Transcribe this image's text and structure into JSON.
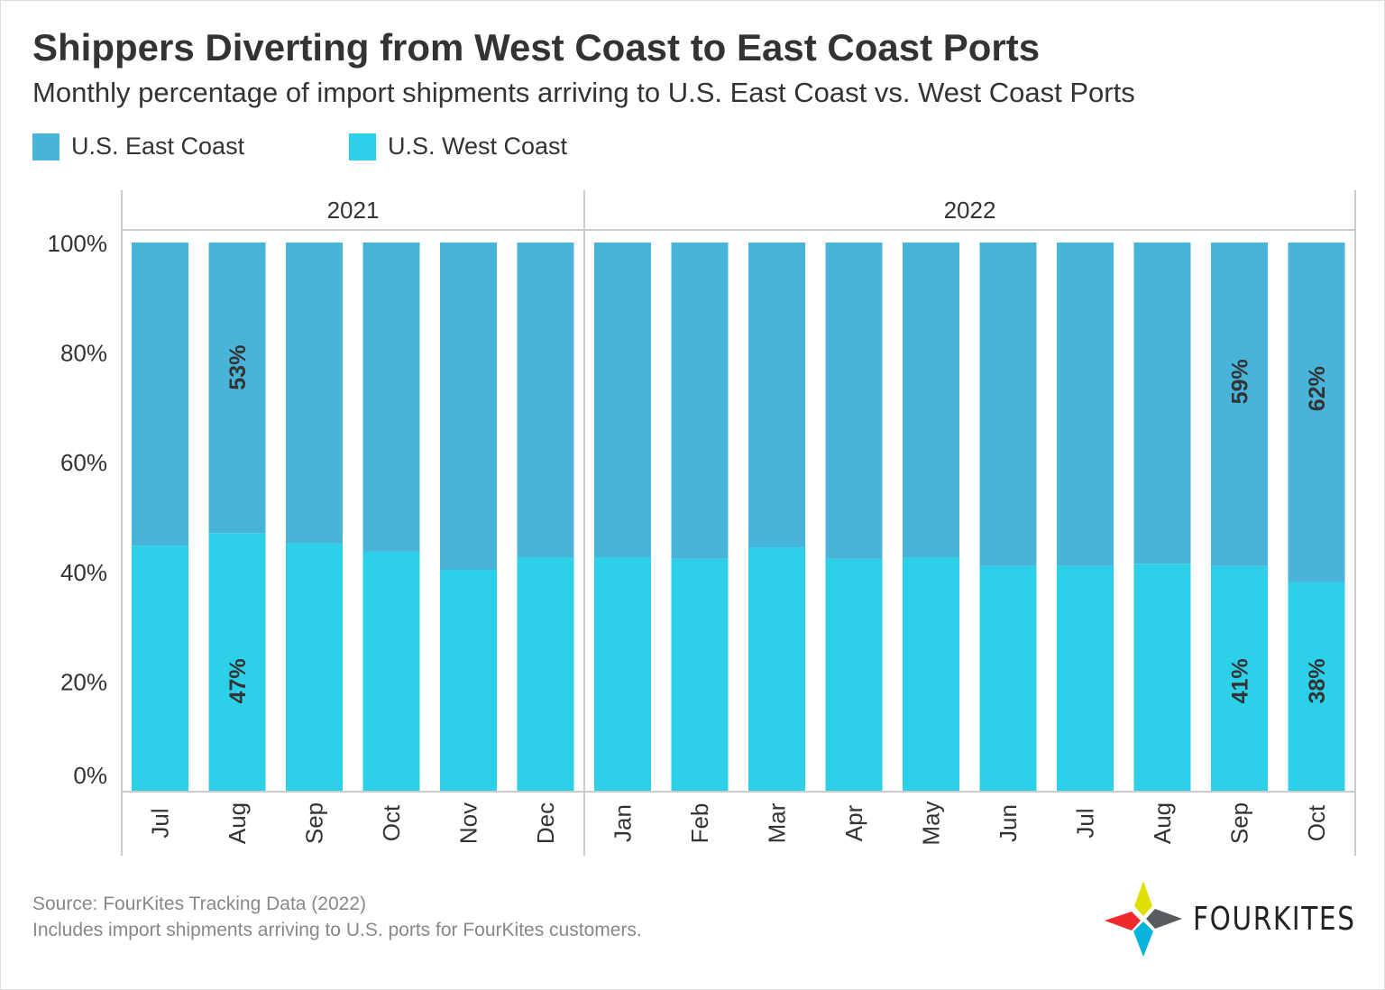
{
  "title": "Shippers Diverting from West Coast to East Coast Ports",
  "subtitle": "Monthly percentage of import shipments arriving to U.S. East Coast vs. West Coast Ports",
  "source_lines": [
    "Source: FourKites Tracking Data (2022)",
    "Includes import shipments arriving to U.S. ports for FourKites customers."
  ],
  "logo_text": "FOURKITES",
  "chart_data": {
    "type": "bar",
    "stacked": true,
    "groups": [
      {
        "label": "2021",
        "categories": [
          "Jul",
          "Aug",
          "Sep",
          "Oct",
          "Nov",
          "Dec"
        ]
      },
      {
        "label": "2022",
        "categories": [
          "Jan",
          "Feb",
          "Mar",
          "Apr",
          "May",
          "Jun",
          "Jul",
          "Aug",
          "Sep",
          "Oct"
        ]
      }
    ],
    "categories": [
      "Jul",
      "Aug",
      "Sep",
      "Oct",
      "Nov",
      "Dec",
      "Jan",
      "Feb",
      "Mar",
      "Apr",
      "May",
      "Jun",
      "Jul",
      "Aug",
      "Sep",
      "Oct"
    ],
    "series": [
      {
        "name": "U.S. West Coast",
        "color": "#2CD0E8",
        "values": [
          44.7,
          47,
          45.1,
          43.6,
          40.3,
          42.6,
          42.6,
          42.3,
          44.4,
          42.3,
          42.6,
          41,
          41,
          41.4,
          41,
          38
        ],
        "data_labels": [
          null,
          "47%",
          null,
          null,
          null,
          null,
          null,
          null,
          null,
          null,
          null,
          null,
          null,
          null,
          "41%",
          "38%"
        ]
      },
      {
        "name": "U.S. East Coast",
        "color": "#48B4DA",
        "values": [
          55.3,
          53,
          54.9,
          56.4,
          59.7,
          57.4,
          57.4,
          57.7,
          55.6,
          57.7,
          57.4,
          59,
          59,
          58.6,
          59,
          62
        ],
        "data_labels": [
          null,
          "53%",
          null,
          null,
          null,
          null,
          null,
          null,
          null,
          null,
          null,
          null,
          null,
          null,
          "59%",
          "62%"
        ]
      }
    ],
    "legend": [
      "U.S. East Coast",
      "U.S. West Coast"
    ],
    "legend_placement": "top-left",
    "y_ticks": [
      "0%",
      "20%",
      "40%",
      "60%",
      "80%",
      "100%"
    ],
    "ylim": [
      0,
      100
    ],
    "grid": false
  }
}
